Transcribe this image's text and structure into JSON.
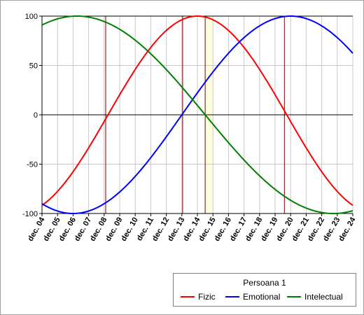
{
  "chart_data": {
    "type": "line",
    "x": [
      "dec. 04",
      "dec. 05",
      "dec. 06",
      "dec. 07",
      "dec. 08",
      "dec. 09",
      "dec. 10",
      "dec. 11",
      "dec. 12",
      "dec. 13",
      "dec. 14",
      "dec. 15",
      "dec. 16",
      "dec. 17",
      "dec. 18",
      "dec. 19",
      "dec. 20",
      "dec. 21",
      "dec. 22",
      "dec. 23",
      "dec. 24"
    ],
    "ylim": [
      -100,
      100
    ],
    "yticks": [
      100,
      50,
      0,
      -50,
      -100
    ],
    "grid": true,
    "legend": {
      "title": "Persoana 1",
      "position": "bottom-right"
    },
    "highlight_band": {
      "from": 14.5,
      "to": 15.0,
      "color": "#ffffdd"
    },
    "markers": {
      "color": "#800000",
      "x": [
        8.1,
        13.05,
        14.5,
        19.6
      ]
    },
    "series": [
      {
        "name": "Fizic",
        "color": "#ff0000",
        "period": 23,
        "peak_x": 14.0
      },
      {
        "name": "Emotional",
        "color": "#0000ff",
        "period": 28,
        "peak_x": 20.0
      },
      {
        "name": "Intelectual",
        "color": "#008000",
        "period": 33,
        "peak_x": 6.25
      }
    ]
  }
}
